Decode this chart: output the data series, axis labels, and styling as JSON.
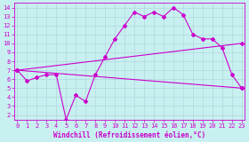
{
  "xlabel": "Windchill (Refroidissement éolien,°C)",
  "ylabel": "",
  "bg_color": "#c8f0f0",
  "grid_color": "#b0d8e0",
  "line_color": "#cc00cc",
  "x_ticks": [
    0,
    1,
    2,
    3,
    4,
    5,
    6,
    7,
    8,
    9,
    10,
    11,
    12,
    13,
    14,
    15,
    16,
    17,
    18,
    19,
    20,
    21,
    22,
    23
  ],
  "y_ticks": [
    2,
    3,
    4,
    5,
    6,
    7,
    8,
    9,
    10,
    11,
    12,
    13,
    14
  ],
  "xlim": [
    -0.3,
    23.3
  ],
  "ylim": [
    1.5,
    14.5
  ],
  "line1_x": [
    0,
    1,
    2,
    3,
    4,
    5,
    6,
    7,
    8,
    9,
    10,
    11,
    12,
    13,
    14,
    15,
    16,
    17,
    18,
    19,
    20,
    21,
    22,
    23
  ],
  "line1_y": [
    7.0,
    5.8,
    6.2,
    6.5,
    6.5,
    1.5,
    4.2,
    3.5,
    6.5,
    8.5,
    10.5,
    12.0,
    13.5,
    13.0,
    13.5,
    13.0,
    14.0,
    13.2,
    11.0,
    10.5,
    10.5,
    9.5,
    6.5,
    5.0
  ],
  "line2_x": [
    0,
    23
  ],
  "line2_y": [
    7.0,
    5.0
  ],
  "line3_x": [
    0,
    23
  ],
  "line3_y": [
    7.0,
    10.0
  ],
  "marker": "D",
  "markersize": 2.0,
  "linewidth": 0.8,
  "tick_fontsize": 5.0,
  "label_fontsize": 5.5
}
